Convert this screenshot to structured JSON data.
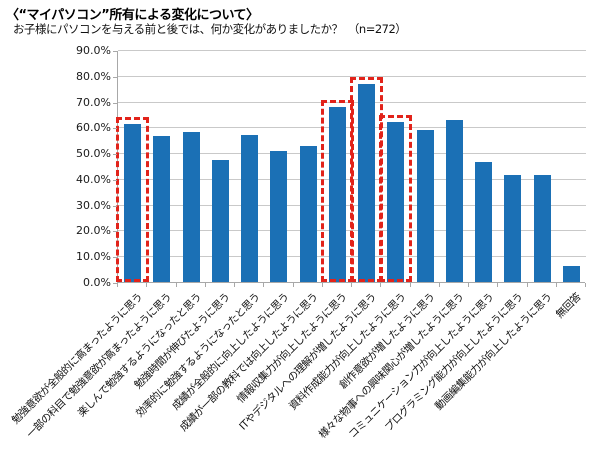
{
  "header": {
    "title": "〈“マイパソコン”所有による変化について〉",
    "subtitle": "お子様にパソコンを与える前と後では、何か変化がありましたか？　（n=272）"
  },
  "chart_data": {
    "type": "bar",
    "title": "〈“マイパソコン”所有による変化について〉",
    "subtitle": "お子様にパソコンを与える前と後では、何か変化がありましたか？　（n=272）",
    "sample_size": "n=272",
    "categories": [
      "勉強意欲が全般的に高まったように思う",
      "一部の科目で勉強意欲が高まったように思う",
      "楽しんで勉強するようになったと思う",
      "勉強時間が伸びたように思う",
      "効率的に勉強するようになったと思う",
      "成績が全般的に向上したように思う",
      "成績が一部の教科では向上したように思う",
      "情報収集力が向上したように思う",
      "ITやデジタルへの理解が増したように思う",
      "資料作成能力が向上したように思う",
      "創作意欲が増したように思う",
      "様々な物事への興味関心が増したように思う",
      "コミュニケーション力が向上したように思う",
      "プログラミング能力が向上したように思う",
      "動画編集能力が向上したように思う",
      "無回答"
    ],
    "values": [
      61.4,
      56.5,
      58.3,
      47.3,
      57.1,
      51.0,
      52.9,
      67.8,
      77.0,
      62.1,
      58.8,
      62.9,
      46.4,
      41.5,
      41.5,
      6.3
    ],
    "highlighted_indices": [
      0,
      7,
      8,
      9
    ],
    "ylim": [
      0,
      90
    ],
    "ytick_step": 10,
    "ytick_labels": [
      "0.0%",
      "10.0%",
      "20.0%",
      "30.0%",
      "40.0%",
      "50.0%",
      "60.0%",
      "70.0%",
      "80.0%",
      "90.0%"
    ],
    "xlabel": "",
    "ylabel": "",
    "grid": true,
    "legend": "none",
    "bar_color": "#1b70b5",
    "highlight_box_color": "#e2231a",
    "gridline_color": "#c9c9c9",
    "axis_color": "#a8a8a8"
  }
}
